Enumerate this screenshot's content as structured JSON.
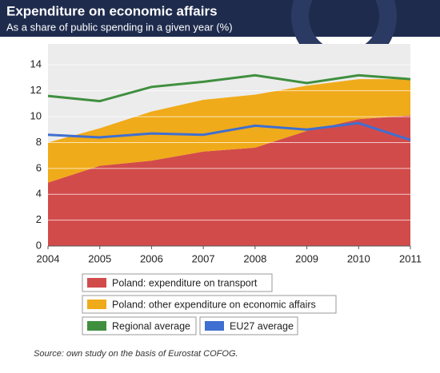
{
  "chart_data": {
    "type": "stacked-area-line",
    "title": "Expenditure on economic affairs",
    "subtitle": "As a share of public spending in a given year (%)",
    "source": "Source: own study on the basis of Eurostat COFOG.",
    "x": [
      2004,
      2005,
      2006,
      2007,
      2008,
      2009,
      2010,
      2011
    ],
    "xlim": [
      2004,
      2011
    ],
    "xticks": [
      2004,
      2005,
      2006,
      2007,
      2008,
      2009,
      2010,
      2011
    ],
    "ylim": [
      0,
      15.5
    ],
    "yticks": [
      0,
      2,
      4,
      6,
      8,
      10,
      12,
      14
    ],
    "grid": true,
    "series": [
      {
        "name": "Poland: expenditure on transport",
        "color": "#d24b4b",
        "kind": "area",
        "values": [
          4.9,
          6.2,
          6.6,
          7.3,
          7.6,
          8.9,
          9.8,
          10.1
        ]
      },
      {
        "name": "Poland: other expenditure on economic affairs",
        "color": "#f0ab1a",
        "kind": "area",
        "values": [
          3.1,
          2.9,
          3.8,
          4.0,
          4.1,
          3.5,
          3.1,
          2.8
        ]
      },
      {
        "name": "Regional average",
        "color": "#3f8f3f",
        "kind": "line",
        "values": [
          11.6,
          11.2,
          12.3,
          12.7,
          13.2,
          12.6,
          13.2,
          12.9
        ]
      },
      {
        "name": "EU27 average",
        "color": "#3f6fd0",
        "kind": "line",
        "values": [
          8.6,
          8.4,
          8.7,
          8.6,
          9.3,
          9.0,
          9.5,
          8.2
        ]
      }
    ]
  }
}
